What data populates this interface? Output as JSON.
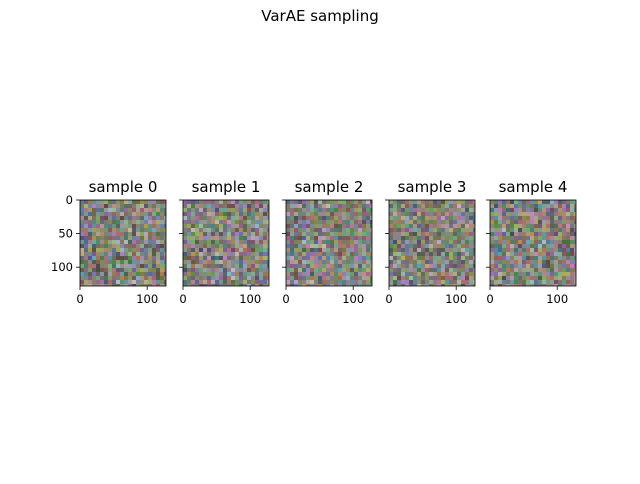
{
  "figure": {
    "suptitle": "VarAE sampling"
  },
  "chart_data": {
    "type": "image-grid",
    "title": "VarAE sampling",
    "panels": [
      {
        "title": "sample 0",
        "image_size": [
          128,
          128
        ],
        "xticks": [
          0,
          100
        ],
        "yticks": [
          0,
          50,
          100
        ],
        "show_ytick_labels": true
      },
      {
        "title": "sample 1",
        "image_size": [
          128,
          128
        ],
        "xticks": [
          0,
          100
        ],
        "yticks": [
          0,
          50,
          100
        ],
        "show_ytick_labels": false
      },
      {
        "title": "sample 2",
        "image_size": [
          128,
          128
        ],
        "xticks": [
          0,
          100
        ],
        "yticks": [
          0,
          50,
          100
        ],
        "show_ytick_labels": false
      },
      {
        "title": "sample 3",
        "image_size": [
          128,
          128
        ],
        "xticks": [
          0,
          100
        ],
        "yticks": [
          0,
          50,
          100
        ],
        "show_ytick_labels": false
      },
      {
        "title": "sample 4",
        "image_size": [
          128,
          128
        ],
        "xticks": [
          0,
          100
        ],
        "yticks": [
          0,
          50,
          100
        ],
        "show_ytick_labels": false
      }
    ],
    "content": "RGB noise images",
    "palette": [
      "#8a8f7e",
      "#6f7a86",
      "#9a8a6c",
      "#5f6b5a",
      "#a39aa4",
      "#707060",
      "#7e8a96",
      "#8c7e70"
    ]
  }
}
